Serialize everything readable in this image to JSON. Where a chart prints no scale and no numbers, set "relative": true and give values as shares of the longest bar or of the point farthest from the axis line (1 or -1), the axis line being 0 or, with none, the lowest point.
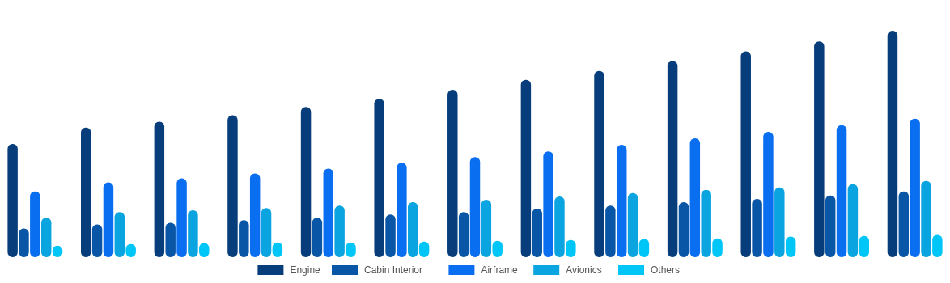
{
  "chart_data": {
    "type": "bar",
    "relative": true,
    "legend": "bottom",
    "categories": [
      null,
      null,
      null,
      null,
      null,
      null,
      null,
      null,
      null,
      null,
      null,
      null,
      null
    ],
    "series": [
      {
        "name": "Engine",
        "color": "#063d7a",
        "values": [
          0.5,
          0.572,
          0.598,
          0.627,
          0.663,
          0.699,
          0.739,
          0.783,
          0.822,
          0.866,
          0.909,
          0.953,
          1
        ]
      },
      {
        "name": "Cabin Interior",
        "color": "#0a56a6",
        "values": [
          0.127,
          0.145,
          0.152,
          0.163,
          0.174,
          0.188,
          0.199,
          0.214,
          0.228,
          0.243,
          0.257,
          0.272,
          0.29
        ]
      },
      {
        "name": "Airframe",
        "color": "#0a6ef0",
        "values": [
          0.29,
          0.33,
          0.348,
          0.37,
          0.391,
          0.417,
          0.442,
          0.467,
          0.496,
          0.525,
          0.554,
          0.583,
          0.612
        ]
      },
      {
        "name": "Avionics",
        "color": "#0aa4e0",
        "values": [
          0.174,
          0.199,
          0.207,
          0.217,
          0.228,
          0.243,
          0.254,
          0.268,
          0.283,
          0.297,
          0.308,
          0.322,
          0.337
        ]
      },
      {
        "name": "Others",
        "color": "#00c6f7",
        "values": [
          0.051,
          0.058,
          0.062,
          0.065,
          0.065,
          0.069,
          0.072,
          0.076,
          0.08,
          0.083,
          0.091,
          0.094,
          0.098
        ]
      }
    ]
  }
}
